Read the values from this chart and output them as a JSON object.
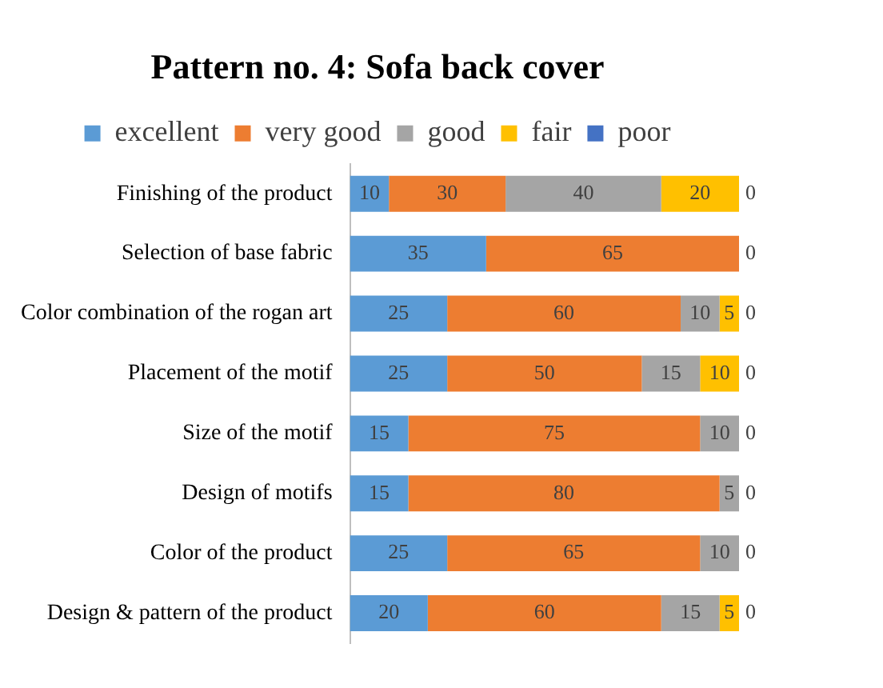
{
  "chart_data": {
    "type": "bar",
    "title": "Pattern no. 4: Sofa back cover",
    "orientation": "horizontal",
    "stacked": true,
    "categories": [
      "Finishing of the product",
      "Selection of base fabric",
      "Color combination of the rogan art",
      "Placement of the motif",
      "Size of the motif",
      "Design of motifs",
      "Color of the product",
      "Design & pattern of the product"
    ],
    "series": [
      {
        "name": "excellent",
        "color": "#5b9bd5",
        "values": [
          10,
          35,
          25,
          25,
          15,
          15,
          25,
          20
        ],
        "value_labels": [
          "10",
          "35",
          "25",
          "25",
          "15",
          "15",
          "25",
          "20"
        ]
      },
      {
        "name": "very good",
        "color": "#ed7d31",
        "values": [
          30,
          65,
          60,
          50,
          75,
          80,
          65,
          60
        ],
        "value_labels": [
          "30",
          "65",
          "60",
          "50",
          "75",
          "80",
          "65",
          "60"
        ]
      },
      {
        "name": "good",
        "color": "#a5a5a5",
        "values": [
          40,
          0,
          10,
          15,
          10,
          5,
          10,
          15
        ],
        "value_labels": [
          "40",
          null,
          "10",
          "15",
          "10",
          "5",
          "10",
          "15"
        ]
      },
      {
        "name": "fair",
        "color": "#ffc000",
        "values": [
          20,
          0,
          5,
          10,
          0,
          0,
          0,
          5
        ],
        "value_labels": [
          "20",
          null,
          "5",
          "10",
          null,
          null,
          null,
          "5"
        ]
      },
      {
        "name": "poor",
        "color": "#4472c4",
        "values": [
          0,
          0,
          0,
          0,
          0,
          0,
          0,
          0
        ],
        "value_labels": [
          "0",
          "0",
          "0",
          "0",
          "0",
          "0",
          "0",
          "0"
        ]
      }
    ],
    "xlim": [
      0,
      100
    ],
    "tick_labels": "y",
    "grid": false,
    "legend": "top"
  }
}
